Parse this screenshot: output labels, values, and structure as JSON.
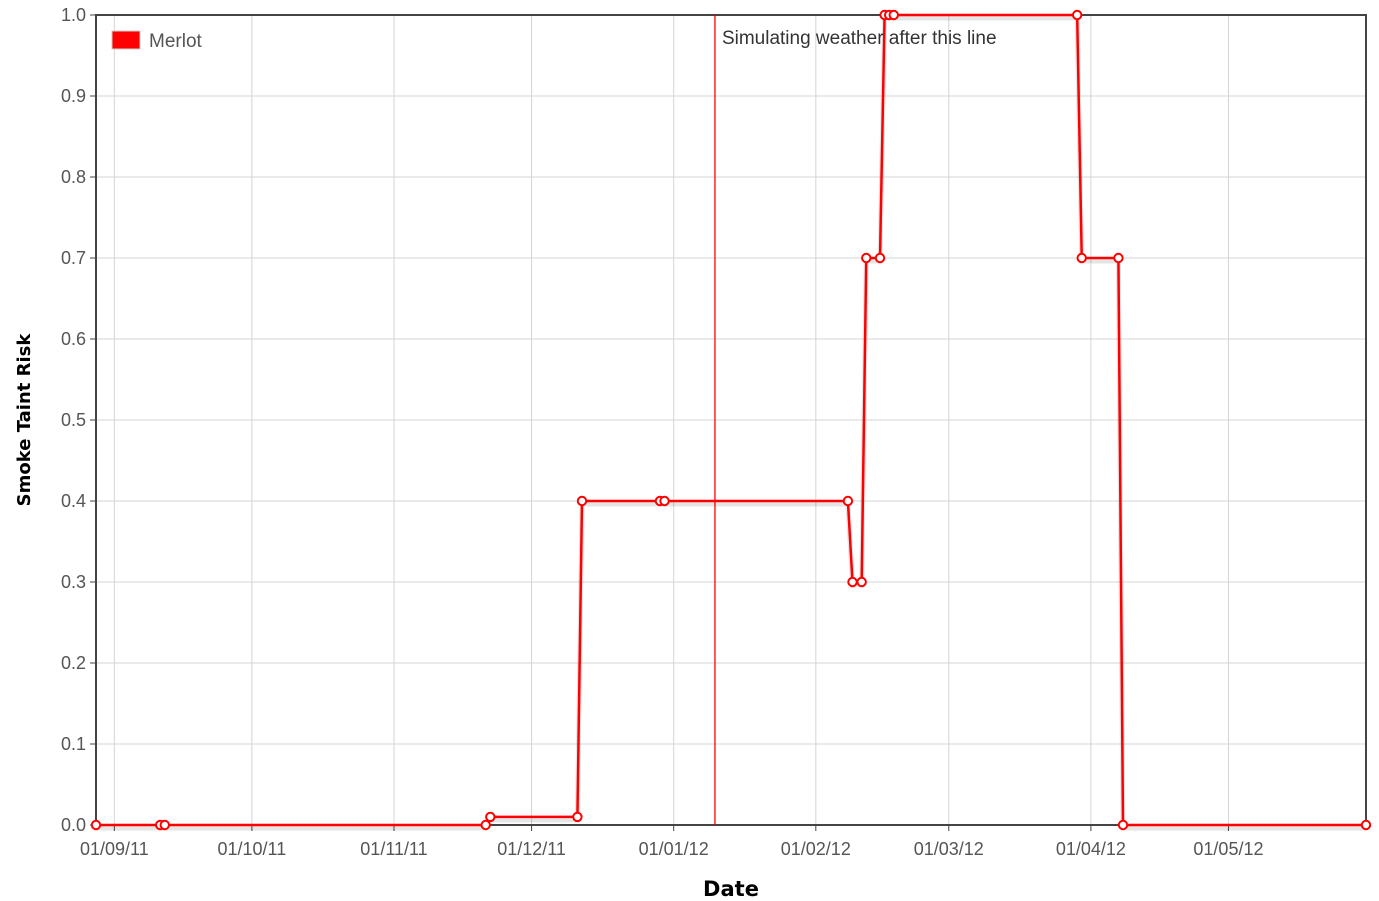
{
  "chart_data": {
    "type": "line",
    "title": "",
    "xlabel": "Date",
    "ylabel": "Smoke Taint Risk",
    "x_tick_labels": [
      "01/09/11",
      "01/10/11",
      "01/11/11",
      "01/12/11",
      "01/01/12",
      "01/02/12",
      "01/03/12",
      "01/04/12",
      "01/05/12"
    ],
    "x_tick_dates": [
      "2011-09-01",
      "2011-10-01",
      "2011-11-01",
      "2011-12-01",
      "2012-01-01",
      "2012-02-01",
      "2012-03-01",
      "2012-04-01",
      "2012-05-01"
    ],
    "xlim": [
      "2011-08-28",
      "2012-05-31"
    ],
    "y_tick_labels": [
      "0.0",
      "0.1",
      "0.2",
      "0.3",
      "0.4",
      "0.5",
      "0.6",
      "0.7",
      "0.8",
      "0.9",
      "1.0"
    ],
    "ylim": [
      0,
      1
    ],
    "grid": true,
    "legend_position": "top-left",
    "series": [
      {
        "name": "Merlot",
        "color": "#ff0000",
        "x": [
          "2011-08-28",
          "2011-09-11",
          "2011-09-12",
          "2011-11-21",
          "2011-11-22",
          "2011-12-11",
          "2011-12-12",
          "2011-12-29",
          "2011-12-30",
          "2012-02-08",
          "2012-02-09",
          "2012-02-11",
          "2012-02-12",
          "2012-02-15",
          "2012-02-16",
          "2012-02-17",
          "2012-02-18",
          "2012-03-29",
          "2012-03-30",
          "2012-04-07",
          "2012-04-08",
          "2012-05-31"
        ],
        "y": [
          0,
          0,
          0,
          0,
          0.01,
          0.01,
          0.4,
          0.4,
          0.4,
          0.4,
          0.3,
          0.3,
          0.7,
          0.7,
          1,
          1,
          1,
          1,
          0.7,
          0.7,
          0,
          0
        ]
      }
    ],
    "annotations": [
      {
        "type": "vertical-line",
        "x": "2012-01-10",
        "color": "#ff0000",
        "label": "Simulating weather after this line"
      }
    ]
  }
}
